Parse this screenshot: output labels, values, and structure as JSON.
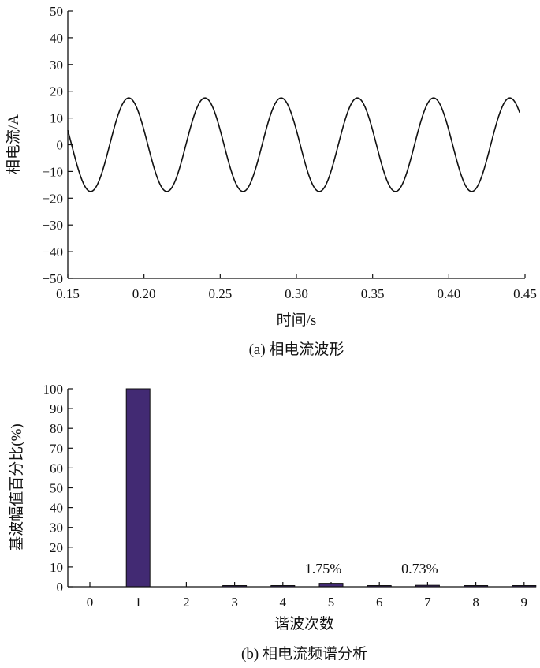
{
  "chart_data": [
    {
      "type": "line",
      "caption": "(a) 相电流波形",
      "xlabel": "时间/s",
      "ylabel": "相电流/A",
      "xlim": [
        0.15,
        0.45
      ],
      "ylim": [
        -50,
        50
      ],
      "x_ticks": [
        "0.15",
        "0.20",
        "0.25",
        "0.30",
        "0.35",
        "0.40",
        "0.45"
      ],
      "y_ticks": [
        "−50",
        "−40",
        "−30",
        "−20",
        "−10",
        "0",
        "10",
        "20",
        "30",
        "40",
        "50"
      ],
      "grid": false,
      "series": [
        {
          "amplitude": 17.5,
          "frequency_hz": 20,
          "x_start": 0.15,
          "x_end": 0.4465,
          "value_at_start": 8,
          "value_at_end": 7,
          "peaks_x": [
            0.19,
            0.24,
            0.29,
            0.34,
            0.39,
            0.44
          ],
          "troughs_x": [
            0.165,
            0.215,
            0.265,
            0.315,
            0.365,
            0.415
          ],
          "color": "#111111"
        }
      ]
    },
    {
      "type": "bar",
      "caption": "(b) 相电流频谱分析",
      "xlabel": "谐波次数",
      "ylabel": "基波幅值百分比(%)",
      "ylim": [
        0,
        100
      ],
      "categories": [
        "0",
        "1",
        "2",
        "3",
        "4",
        "5",
        "6",
        "7",
        "8",
        "9"
      ],
      "y_ticks": [
        "0",
        "10",
        "20",
        "30",
        "40",
        "50",
        "60",
        "70",
        "80",
        "90",
        "100"
      ],
      "values": [
        0,
        100,
        0,
        0.3,
        0.3,
        1.75,
        0.3,
        0.73,
        0.3,
        0.3
      ],
      "bar_color": "#422a73",
      "annotations": [
        {
          "category": "5",
          "text": "1.75%"
        },
        {
          "category": "7",
          "text": "0.73%"
        }
      ],
      "grid": false
    }
  ]
}
